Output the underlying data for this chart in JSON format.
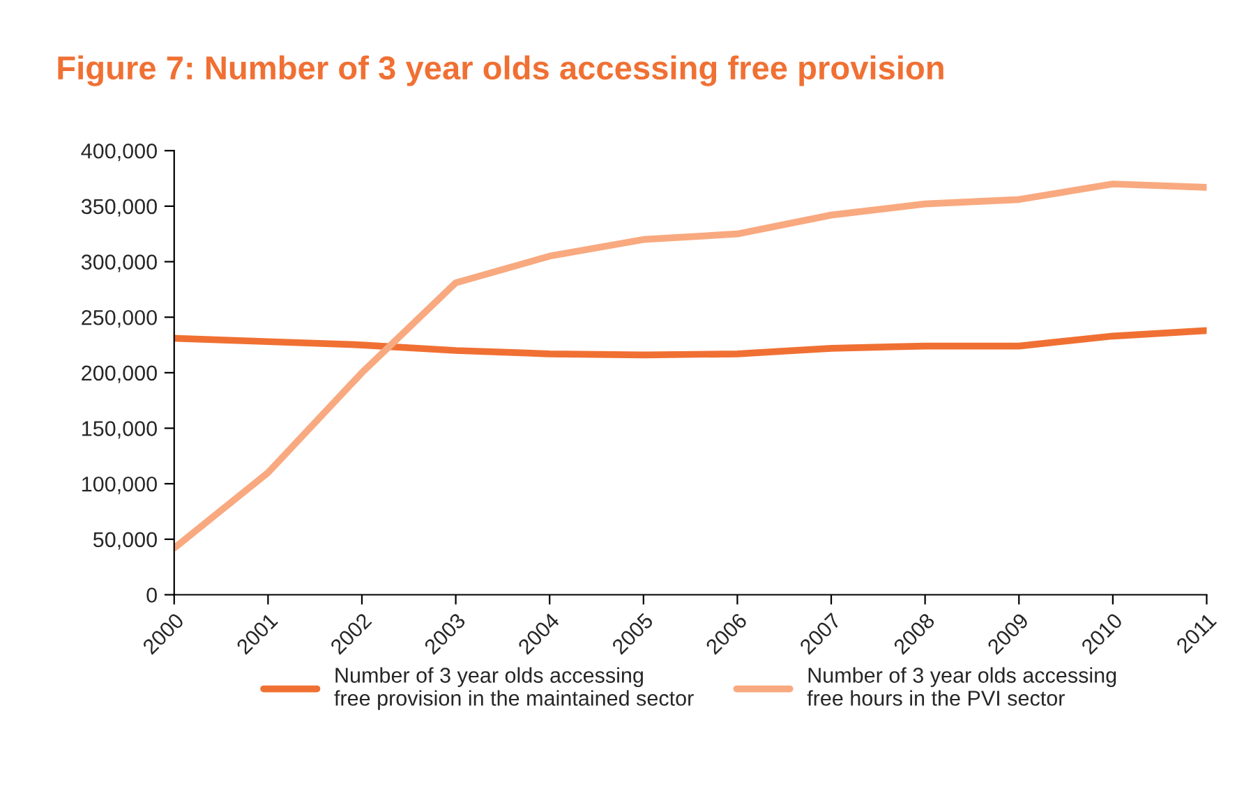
{
  "chart_data": {
    "type": "line",
    "title": "Figure 7: Number of 3 year olds accessing free provision",
    "categories": [
      "2000",
      "2001",
      "2002",
      "2003",
      "2004",
      "2005",
      "2006",
      "2007",
      "2008",
      "2009",
      "2010",
      "2011"
    ],
    "series": [
      {
        "name": "Number of 3 year olds accessing\nfree provision in the maintained sector",
        "color": "#f07033",
        "values": [
          231000,
          228000,
          225000,
          220000,
          217000,
          216000,
          217000,
          222000,
          224000,
          224000,
          233000,
          238000
        ]
      },
      {
        "name": "Number of 3 year olds accessing\nfree hours in the PVI sector",
        "color": "#f9a97f",
        "values": [
          42000,
          110000,
          200000,
          281000,
          305000,
          320000,
          325000,
          342000,
          352000,
          356000,
          370000,
          367000
        ]
      }
    ],
    "ylim": [
      0,
      400000
    ],
    "yticks": [
      {
        "value": 0,
        "label": "0"
      },
      {
        "value": 50000,
        "label": "50,000"
      },
      {
        "value": 100000,
        "label": "100,000"
      },
      {
        "value": 150000,
        "label": "150,000"
      },
      {
        "value": 200000,
        "label": "200,000"
      },
      {
        "value": 250000,
        "label": "250,000"
      },
      {
        "value": 300000,
        "label": "300,000"
      },
      {
        "value": 350000,
        "label": "350,000"
      },
      {
        "value": 400000,
        "label": "400,000"
      }
    ],
    "grid": false,
    "legend": "bottom",
    "marker": "none",
    "line_style": "solid"
  }
}
